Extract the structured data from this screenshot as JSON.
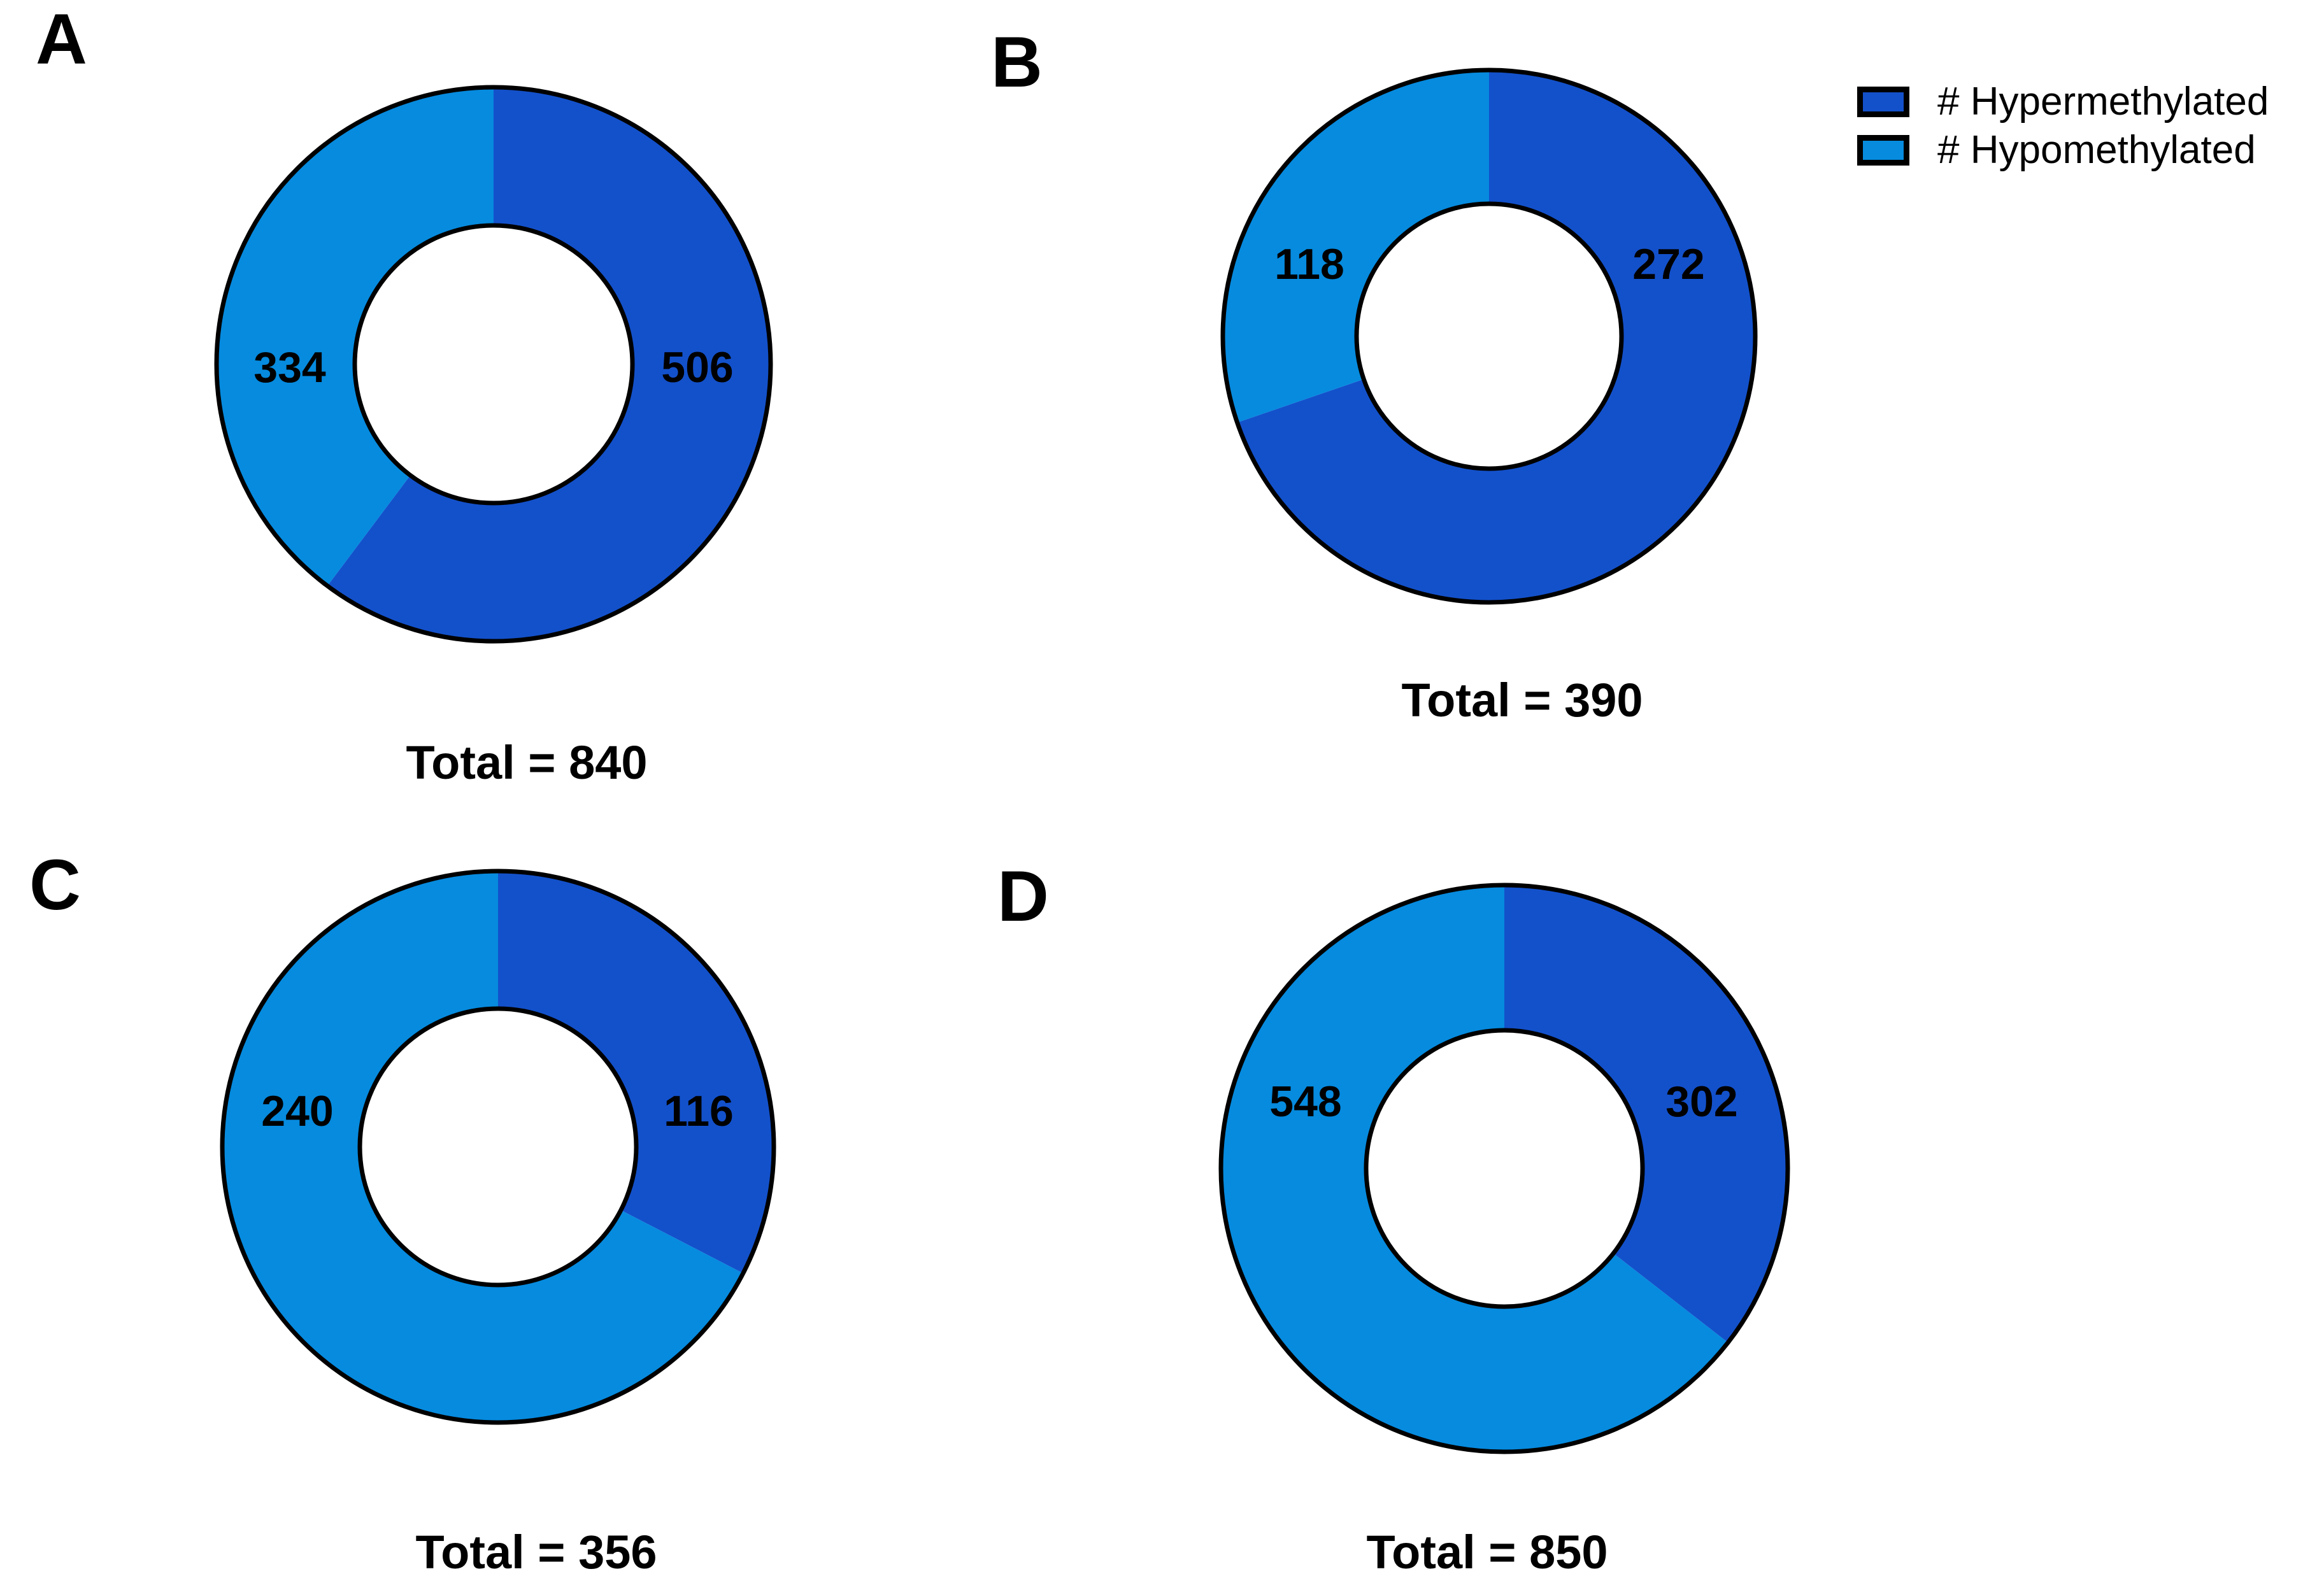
{
  "page": {
    "background": "#FFFFFF",
    "figure_kind": "donut-chart-grid"
  },
  "colors": {
    "hypermethylated": "#1351CB",
    "hypomethylated": "#068BDF",
    "outline": "#000000",
    "text": "#000000"
  },
  "legend": {
    "position": "top-right",
    "items": [
      {
        "label": "# Hypermethylated",
        "color_key": "hypermethylated"
      },
      {
        "label": "# Hypomethylated",
        "color_key": "hypomethylated"
      }
    ]
  },
  "chart_data": [
    {
      "type": "pie",
      "subtype": "donut",
      "panel_label": "A",
      "start_angle_deg": 0,
      "direction": "clockwise",
      "slices": [
        {
          "name": "# Hypermethylated",
          "value": 506,
          "data_label": "506",
          "color_key": "hypermethylated"
        },
        {
          "name": "# Hypomethylated",
          "value": 334,
          "data_label": "334",
          "color_key": "hypomethylated"
        }
      ],
      "total": 840,
      "total_label": "Total = 840"
    },
    {
      "type": "pie",
      "subtype": "donut",
      "panel_label": "B",
      "start_angle_deg": 0,
      "direction": "clockwise",
      "slices": [
        {
          "name": "# Hypermethylated",
          "value": 272,
          "data_label": "272",
          "color_key": "hypermethylated"
        },
        {
          "name": "# Hypomethylated",
          "value": 118,
          "data_label": "118",
          "color_key": "hypomethylated"
        }
      ],
      "total": 390,
      "total_label": "Total = 390"
    },
    {
      "type": "pie",
      "subtype": "donut",
      "panel_label": "C",
      "start_angle_deg": 0,
      "direction": "clockwise",
      "slices": [
        {
          "name": "# Hypermethylated",
          "value": 116,
          "data_label": "116",
          "color_key": "hypermethylated"
        },
        {
          "name": "# Hypomethylated",
          "value": 240,
          "data_label": "240",
          "color_key": "hypomethylated"
        }
      ],
      "total": 356,
      "total_label": "Total = 356"
    },
    {
      "type": "pie",
      "subtype": "donut",
      "panel_label": "D",
      "start_angle_deg": 0,
      "direction": "clockwise",
      "slices": [
        {
          "name": "# Hypermethylated",
          "value": 302,
          "data_label": "302",
          "color_key": "hypermethylated"
        },
        {
          "name": "# Hypomethylated",
          "value": 548,
          "data_label": "548",
          "color_key": "hypomethylated"
        }
      ],
      "total": 850,
      "total_label": "Total = 850"
    }
  ]
}
